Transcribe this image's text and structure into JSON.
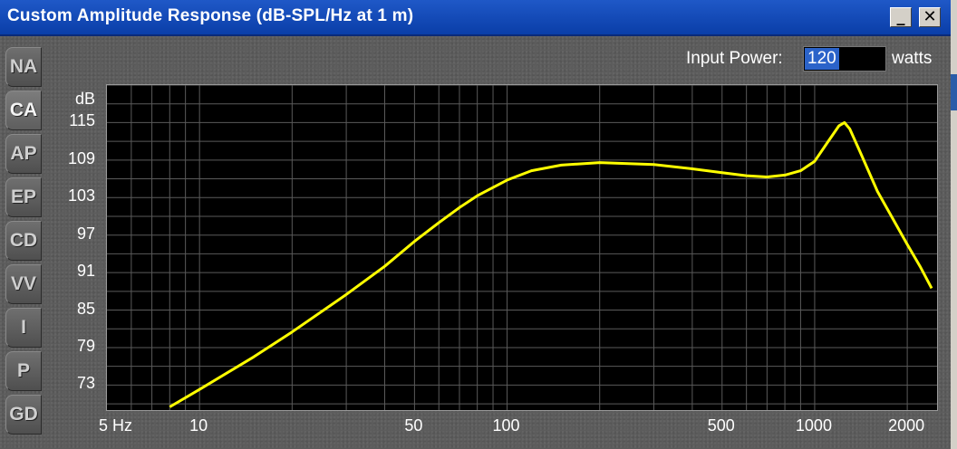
{
  "window": {
    "title": "Custom Amplitude Response (dB-SPL/Hz at 1 m)",
    "minimize_glyph": "_",
    "close_glyph": "✕"
  },
  "tabs": [
    {
      "label": "NA",
      "active": false
    },
    {
      "label": "CA",
      "active": true
    },
    {
      "label": "AP",
      "active": false
    },
    {
      "label": "EP",
      "active": false
    },
    {
      "label": "CD",
      "active": false
    },
    {
      "label": "VV",
      "active": false
    },
    {
      "label": "I",
      "active": false
    },
    {
      "label": "P",
      "active": false
    },
    {
      "label": "GD",
      "active": false
    }
  ],
  "input_power": {
    "label": "Input Power:",
    "value": "120",
    "unit": "watts"
  },
  "colors": {
    "curve": "#ffff00",
    "plot_bg": "#000000",
    "grid": "#5a5a5a",
    "title_bar": "#1f58c7"
  },
  "chart_data": {
    "type": "line",
    "x_scale": "log",
    "grid": true,
    "xlim": [
      5,
      2500
    ],
    "ylim": [
      69,
      121
    ],
    "ylabel": "dB",
    "y_ticks": [
      {
        "value": 115,
        "label": "115"
      },
      {
        "value": 109,
        "label": "109"
      },
      {
        "value": 103,
        "label": "103"
      },
      {
        "value": 97,
        "label": "97"
      },
      {
        "value": 91,
        "label": "91"
      },
      {
        "value": 85,
        "label": "85"
      },
      {
        "value": 79,
        "label": "79"
      },
      {
        "value": 73,
        "label": "73"
      }
    ],
    "x_ticks": [
      {
        "value": 5,
        "label": "5 Hz"
      },
      {
        "value": 10,
        "label": "10"
      },
      {
        "value": 50,
        "label": "50"
      },
      {
        "value": 100,
        "label": "100"
      },
      {
        "value": 500,
        "label": "500"
      },
      {
        "value": 1000,
        "label": "1000"
      },
      {
        "value": 2000,
        "label": "2000"
      }
    ],
    "x_grid": [
      6,
      7,
      8,
      9,
      10,
      20,
      30,
      40,
      50,
      60,
      70,
      80,
      90,
      100,
      200,
      300,
      400,
      500,
      600,
      700,
      800,
      900,
      1000,
      2000
    ],
    "series": [
      {
        "points": [
          [
            8,
            69.5
          ],
          [
            10,
            72.3
          ],
          [
            15,
            77.5
          ],
          [
            20,
            81.5
          ],
          [
            30,
            87.5
          ],
          [
            40,
            92.0
          ],
          [
            50,
            96.0
          ],
          [
            60,
            99.0
          ],
          [
            70,
            101.4
          ],
          [
            80,
            103.3
          ],
          [
            100,
            105.8
          ],
          [
            120,
            107.3
          ],
          [
            150,
            108.2
          ],
          [
            200,
            108.6
          ],
          [
            300,
            108.3
          ],
          [
            400,
            107.6
          ],
          [
            500,
            107.0
          ],
          [
            600,
            106.5
          ],
          [
            700,
            106.3
          ],
          [
            800,
            106.6
          ],
          [
            900,
            107.3
          ],
          [
            1000,
            108.8
          ],
          [
            1100,
            111.8
          ],
          [
            1200,
            114.5
          ],
          [
            1250,
            115.0
          ],
          [
            1300,
            114.0
          ],
          [
            1400,
            110.5
          ],
          [
            1600,
            104.0
          ],
          [
            1800,
            99.5
          ],
          [
            2000,
            95.5
          ],
          [
            2200,
            92.0
          ],
          [
            2400,
            88.5
          ]
        ]
      }
    ]
  }
}
